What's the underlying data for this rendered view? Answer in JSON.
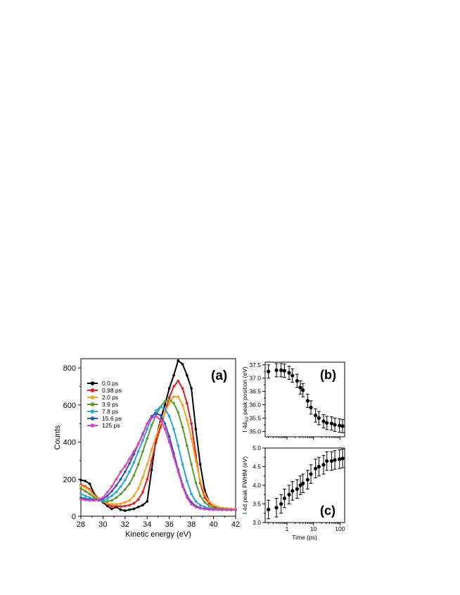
{
  "chart_data": [
    {
      "type": "line",
      "panel_label": "(a)",
      "xlabel": "Kinetic energy (eV)",
      "ylabel": "Counts",
      "xlim": [
        28,
        42
      ],
      "ylim": [
        0,
        850
      ],
      "xticks": [
        28,
        30,
        32,
        34,
        36,
        38,
        40,
        42
      ],
      "yticks": [
        0,
        200,
        400,
        600,
        800
      ],
      "grid": false,
      "legend_position": "top-left",
      "series": [
        {
          "name": "0.0 ps",
          "color": "#000000",
          "x": [
            28.0,
            28.4,
            28.8,
            29.2,
            29.6,
            30.0,
            30.4,
            30.8,
            31.2,
            31.6,
            32.0,
            32.4,
            32.8,
            33.2,
            33.6,
            34.0,
            34.4,
            34.8,
            35.2,
            35.6,
            36.0,
            36.4,
            36.8,
            37.2,
            37.6,
            38.0,
            38.4,
            38.8,
            39.2,
            39.6,
            40.0,
            40.4,
            40.8,
            41.2,
            41.6,
            42.0
          ],
          "y": [
            195,
            190,
            175,
            120,
            95,
            75,
            55,
            40,
            50,
            35,
            30,
            35,
            40,
            50,
            60,
            80,
            250,
            420,
            520,
            600,
            690,
            760,
            840,
            820,
            760,
            690,
            470,
            280,
            140,
            80,
            50,
            42,
            38,
            35,
            35,
            35
          ]
        },
        {
          "name": "0.98 ps",
          "color": "#e8191e",
          "x": [
            28.0,
            28.4,
            28.8,
            29.2,
            29.6,
            30.0,
            30.4,
            30.8,
            31.2,
            31.6,
            32.0,
            32.4,
            32.8,
            33.2,
            33.6,
            34.0,
            34.4,
            34.8,
            35.2,
            35.6,
            36.0,
            36.4,
            36.8,
            37.2,
            37.6,
            38.0,
            38.4,
            38.8,
            39.2,
            39.6,
            40.0,
            40.4,
            40.8,
            41.2,
            41.6,
            42.0
          ],
          "y": [
            170,
            160,
            145,
            115,
            95,
            80,
            65,
            55,
            55,
            52,
            55,
            60,
            70,
            90,
            130,
            200,
            300,
            400,
            480,
            560,
            640,
            700,
            730,
            690,
            610,
            500,
            330,
            180,
            100,
            70,
            55,
            48,
            45,
            42,
            40,
            38
          ]
        },
        {
          "name": "2.0 ps",
          "color": "#f4a422",
          "x": [
            28.0,
            28.4,
            28.8,
            29.2,
            29.6,
            30.0,
            30.4,
            30.8,
            31.2,
            31.6,
            32.0,
            32.4,
            32.8,
            33.2,
            33.6,
            34.0,
            34.4,
            34.8,
            35.2,
            35.6,
            36.0,
            36.4,
            36.8,
            37.2,
            37.6,
            38.0,
            38.4,
            38.8,
            39.2,
            39.6,
            40.0,
            40.4,
            40.8,
            41.2,
            41.6,
            42.0
          ],
          "y": [
            165,
            155,
            140,
            110,
            95,
            80,
            70,
            65,
            65,
            68,
            75,
            85,
            110,
            150,
            210,
            280,
            360,
            430,
            500,
            560,
            610,
            645,
            645,
            600,
            520,
            420,
            300,
            190,
            120,
            80,
            60,
            50,
            45,
            42,
            40,
            38
          ]
        },
        {
          "name": "3.9 ps",
          "color": "#5a9b2e",
          "x": [
            28.0,
            28.4,
            28.8,
            29.2,
            29.6,
            30.0,
            30.4,
            30.8,
            31.2,
            31.6,
            32.0,
            32.4,
            32.8,
            33.2,
            33.6,
            34.0,
            34.4,
            34.8,
            35.2,
            35.6,
            36.0,
            36.4,
            36.8,
            37.2,
            37.6,
            38.0,
            38.4,
            38.8,
            39.2,
            39.6,
            40.0,
            40.4,
            40.8,
            41.2,
            41.6,
            42.0
          ],
          "y": [
            150,
            135,
            120,
            100,
            90,
            80,
            80,
            85,
            100,
            120,
            145,
            175,
            220,
            280,
            350,
            420,
            490,
            545,
            590,
            620,
            630,
            610,
            560,
            480,
            380,
            280,
            180,
            110,
            75,
            55,
            45,
            40,
            38,
            36,
            35,
            35
          ]
        },
        {
          "name": "7.8 ps",
          "color": "#2aa3dd",
          "x": [
            28.0,
            28.4,
            28.8,
            29.2,
            29.6,
            30.0,
            30.4,
            30.8,
            31.2,
            31.6,
            32.0,
            32.4,
            32.8,
            33.2,
            33.6,
            34.0,
            34.4,
            34.8,
            35.2,
            35.6,
            36.0,
            36.4,
            36.8,
            37.2,
            37.6,
            38.0,
            38.4,
            38.8,
            39.2,
            39.6,
            40.0,
            40.4,
            40.8,
            41.2,
            41.6,
            42.0
          ],
          "y": [
            120,
            110,
            100,
            90,
            85,
            85,
            95,
            110,
            130,
            160,
            195,
            240,
            290,
            350,
            410,
            470,
            530,
            570,
            590,
            580,
            540,
            470,
            380,
            280,
            190,
            120,
            80,
            60,
            50,
            42,
            40,
            38,
            36,
            35,
            35,
            35
          ]
        },
        {
          "name": "15.6 ps",
          "color": "#2b55b8",
          "x": [
            28.0,
            28.4,
            28.8,
            29.2,
            29.6,
            30.0,
            30.4,
            30.8,
            31.2,
            31.6,
            32.0,
            32.4,
            32.8,
            33.2,
            33.6,
            34.0,
            34.4,
            34.8,
            35.2,
            35.6,
            36.0,
            36.4,
            36.8,
            37.2,
            37.6,
            38.0,
            38.4,
            38.8,
            39.2,
            39.6,
            40.0,
            40.4,
            40.8,
            41.2,
            41.6,
            42.0
          ],
          "y": [
            100,
            95,
            90,
            88,
            88,
            95,
            110,
            135,
            165,
            200,
            240,
            285,
            335,
            390,
            445,
            500,
            540,
            555,
            545,
            500,
            430,
            340,
            250,
            170,
            110,
            75,
            55,
            45,
            40,
            38,
            36,
            35,
            35,
            34,
            34,
            34
          ]
        },
        {
          "name": "125 ps",
          "color": "#e03bbd",
          "x": [
            28.0,
            28.4,
            28.8,
            29.2,
            29.6,
            30.0,
            30.4,
            30.8,
            31.2,
            31.6,
            32.0,
            32.4,
            32.8,
            33.2,
            33.6,
            34.0,
            34.4,
            34.8,
            35.2,
            35.6,
            36.0,
            36.4,
            36.8,
            37.2,
            37.6,
            38.0,
            38.4,
            38.8,
            39.2,
            39.6,
            40.0,
            40.4,
            40.8,
            41.2,
            41.6,
            42.0
          ],
          "y": [
            90,
            88,
            85,
            85,
            90,
            100,
            130,
            160,
            200,
            240,
            270,
            310,
            350,
            390,
            440,
            500,
            530,
            540,
            520,
            470,
            400,
            320,
            240,
            160,
            100,
            65,
            50,
            42,
            38,
            36,
            35,
            35,
            34,
            34,
            34,
            34
          ]
        }
      ]
    },
    {
      "type": "scatter",
      "panel_label": "(b)",
      "ylabel_main": "I 4d",
      "ylabel_sub": "5/2",
      "ylabel_rest": " peak position (eV)",
      "xscale": "log",
      "xlim": [
        0.15,
        150
      ],
      "ylim": [
        34.8,
        37.6
      ],
      "yticks": [
        "35.0",
        "35.5",
        "36.0",
        "36.5",
        "37.0",
        "37.5"
      ],
      "grid": false,
      "points": [
        {
          "x": 0.2,
          "y": 37.25,
          "err": 0.25
        },
        {
          "x": 0.4,
          "y": 37.3,
          "err": 0.25
        },
        {
          "x": 0.6,
          "y": 37.3,
          "err": 0.25
        },
        {
          "x": 0.8,
          "y": 37.28,
          "err": 0.25
        },
        {
          "x": 1.2,
          "y": 37.2,
          "err": 0.25
        },
        {
          "x": 1.6,
          "y": 37.1,
          "err": 0.25
        },
        {
          "x": 2.4,
          "y": 36.9,
          "err": 0.25
        },
        {
          "x": 3.2,
          "y": 36.65,
          "err": 0.25
        },
        {
          "x": 4.0,
          "y": 36.55,
          "err": 0.25
        },
        {
          "x": 6.0,
          "y": 36.15,
          "err": 0.25
        },
        {
          "x": 8.0,
          "y": 35.9,
          "err": 0.25
        },
        {
          "x": 12,
          "y": 35.6,
          "err": 0.25
        },
        {
          "x": 16,
          "y": 35.5,
          "err": 0.25
        },
        {
          "x": 24,
          "y": 35.38,
          "err": 0.25
        },
        {
          "x": 32,
          "y": 35.32,
          "err": 0.25
        },
        {
          "x": 48,
          "y": 35.3,
          "err": 0.25
        },
        {
          "x": 64,
          "y": 35.25,
          "err": 0.25
        },
        {
          "x": 96,
          "y": 35.22,
          "err": 0.25
        },
        {
          "x": 125,
          "y": 35.2,
          "err": 0.25
        }
      ]
    },
    {
      "type": "scatter",
      "panel_label": "(c)",
      "ylabel": "I 4d peak FWHM (eV)",
      "xlabel": "Time (ps)",
      "xscale": "log",
      "xlim": [
        0.15,
        150
      ],
      "ylim": [
        3.0,
        5.0
      ],
      "xticks": [
        "1",
        "10",
        "100"
      ],
      "yticks": [
        "3.0",
        "3.5",
        "4.0",
        "4.5",
        "5.0"
      ],
      "grid": false,
      "points": [
        {
          "x": 0.2,
          "y": 3.35,
          "err": 0.25
        },
        {
          "x": 0.4,
          "y": 3.4,
          "err": 0.25
        },
        {
          "x": 0.6,
          "y": 3.5,
          "err": 0.25
        },
        {
          "x": 0.8,
          "y": 3.65,
          "err": 0.25
        },
        {
          "x": 1.2,
          "y": 3.75,
          "err": 0.25
        },
        {
          "x": 1.6,
          "y": 3.85,
          "err": 0.25
        },
        {
          "x": 2.4,
          "y": 3.9,
          "err": 0.25
        },
        {
          "x": 3.2,
          "y": 4.0,
          "err": 0.25
        },
        {
          "x": 4.0,
          "y": 4.05,
          "err": 0.25
        },
        {
          "x": 6.0,
          "y": 4.15,
          "err": 0.25
        },
        {
          "x": 8.0,
          "y": 4.3,
          "err": 0.25
        },
        {
          "x": 12,
          "y": 4.45,
          "err": 0.25
        },
        {
          "x": 16,
          "y": 4.5,
          "err": 0.25
        },
        {
          "x": 24,
          "y": 4.55,
          "err": 0.25
        },
        {
          "x": 32,
          "y": 4.65,
          "err": 0.25
        },
        {
          "x": 48,
          "y": 4.65,
          "err": 0.25
        },
        {
          "x": 64,
          "y": 4.68,
          "err": 0.25
        },
        {
          "x": 96,
          "y": 4.7,
          "err": 0.25
        },
        {
          "x": 125,
          "y": 4.72,
          "err": 0.25
        }
      ]
    }
  ]
}
